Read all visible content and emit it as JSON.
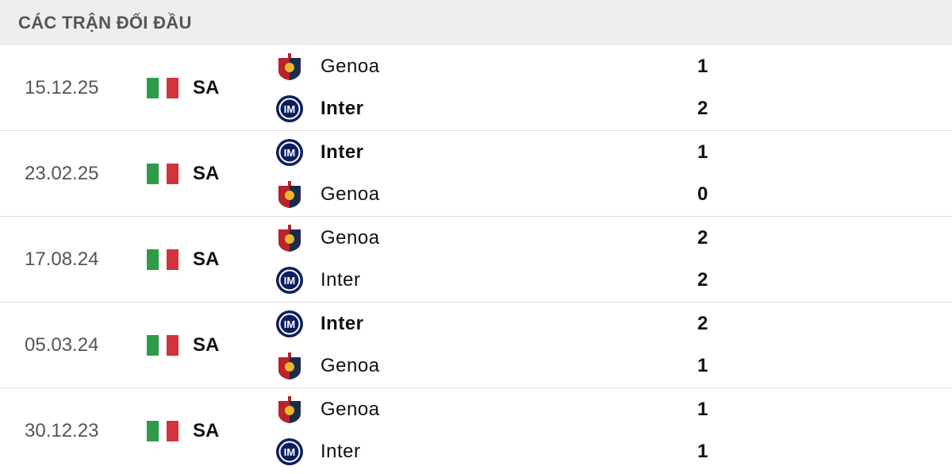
{
  "header": {
    "title": "CÁC TRẬN ĐỐI ĐẦU"
  },
  "colors": {
    "flag_green": "#2e9a4a",
    "flag_red": "#d0343c",
    "inter_blue": "#0a1f5c",
    "genoa_red": "#b8242a",
    "genoa_navy": "#1d2b4a"
  },
  "matches": [
    {
      "date": "15.12.25",
      "competition": "SA",
      "flag": "italy-flag",
      "teams": [
        {
          "name": "Genoa",
          "logo": "genoa-crest",
          "score": "1",
          "winner": false
        },
        {
          "name": "Inter",
          "logo": "inter-crest",
          "score": "2",
          "winner": true
        }
      ]
    },
    {
      "date": "23.02.25",
      "competition": "SA",
      "flag": "italy-flag",
      "teams": [
        {
          "name": "Inter",
          "logo": "inter-crest",
          "score": "1",
          "winner": true
        },
        {
          "name": "Genoa",
          "logo": "genoa-crest",
          "score": "0",
          "winner": false
        }
      ]
    },
    {
      "date": "17.08.24",
      "competition": "SA",
      "flag": "italy-flag",
      "teams": [
        {
          "name": "Genoa",
          "logo": "genoa-crest",
          "score": "2",
          "winner": false
        },
        {
          "name": "Inter",
          "logo": "inter-crest",
          "score": "2",
          "winner": false
        }
      ]
    },
    {
      "date": "05.03.24",
      "competition": "SA",
      "flag": "italy-flag",
      "teams": [
        {
          "name": "Inter",
          "logo": "inter-crest",
          "score": "2",
          "winner": true
        },
        {
          "name": "Genoa",
          "logo": "genoa-crest",
          "score": "1",
          "winner": false
        }
      ]
    },
    {
      "date": "30.12.23",
      "competition": "SA",
      "flag": "italy-flag",
      "teams": [
        {
          "name": "Genoa",
          "logo": "genoa-crest",
          "score": "1",
          "winner": false
        },
        {
          "name": "Inter",
          "logo": "inter-crest",
          "score": "1",
          "winner": false
        }
      ]
    }
  ]
}
